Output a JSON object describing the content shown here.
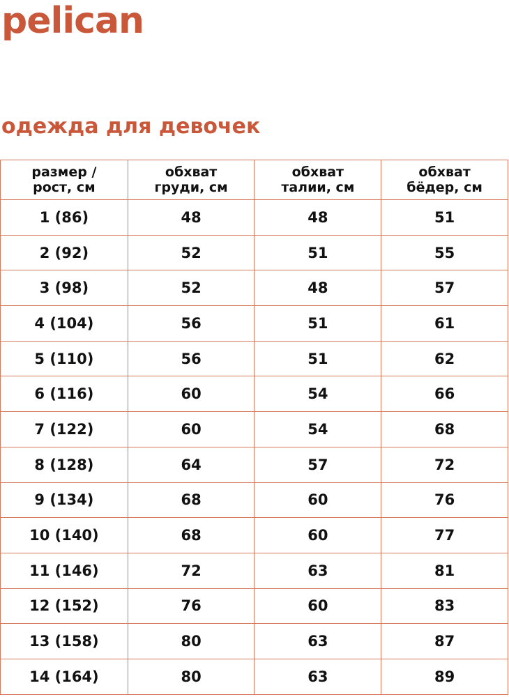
{
  "brand": {
    "logo_text": "pelican",
    "color": "#c9583a"
  },
  "title": "одежда для девочек",
  "table": {
    "headers": [
      [
        "размер /",
        "рост, см"
      ],
      [
        "обхват",
        "груди, см"
      ],
      [
        "обхват",
        "талии, см"
      ],
      [
        "обхват",
        "бёдер, см"
      ]
    ],
    "rows": [
      [
        "1 (86)",
        "48",
        "48",
        "51"
      ],
      [
        "2 (92)",
        "52",
        "51",
        "55"
      ],
      [
        "3 (98)",
        "52",
        "48",
        "57"
      ],
      [
        "4 (104)",
        "56",
        "51",
        "61"
      ],
      [
        "5 (110)",
        "56",
        "51",
        "62"
      ],
      [
        "6 (116)",
        "60",
        "54",
        "66"
      ],
      [
        "7 (122)",
        "60",
        "54",
        "68"
      ],
      [
        "8 (128)",
        "64",
        "57",
        "72"
      ],
      [
        "9 (134)",
        "68",
        "60",
        "76"
      ],
      [
        "10 (140)",
        "68",
        "60",
        "77"
      ],
      [
        "11 (146)",
        "72",
        "63",
        "81"
      ],
      [
        "12 (152)",
        "76",
        "60",
        "83"
      ],
      [
        "13 (158)",
        "80",
        "63",
        "87"
      ],
      [
        "14 (164)",
        "80",
        "63",
        "89"
      ]
    ]
  }
}
